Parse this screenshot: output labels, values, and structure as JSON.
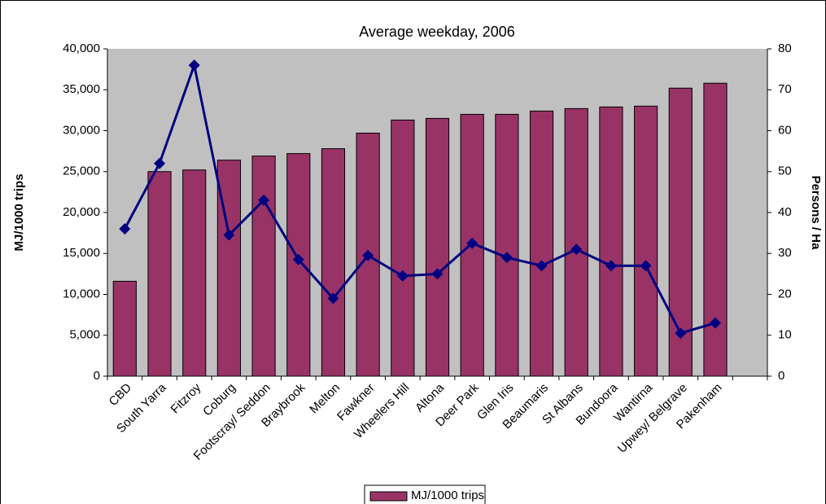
{
  "chart_data": {
    "type": "bar",
    "title": "Average weekday, 2006",
    "y_label": "MJ/1000 trips",
    "y2_label": "Persons / Ha",
    "categories": [
      "CBD",
      "South Yarra",
      "Fitzroy",
      "Coburg",
      "Footscray/ Seddon",
      "Braybrook",
      "Melton",
      "Fawkner",
      "Wheelers Hill",
      "Altona",
      "Deer Park",
      "Glen Iris",
      "Beaumaris",
      "St Albans",
      "Bundoora",
      "Wantirna",
      "Upwey/ Belgrave",
      "Pakenham",
      null
    ],
    "series": [
      {
        "name": "MJ/1000 trips",
        "type": "bar",
        "color": "#993366",
        "values": [
          11600,
          25000,
          25200,
          26400,
          26900,
          27200,
          27800,
          29700,
          31300,
          31500,
          32000,
          32000,
          32400,
          32700,
          32900,
          33000,
          35200,
          35800,
          null
        ]
      },
      {
        "name": "Persons per Ha",
        "type": "line",
        "axis": "y2",
        "color": "#000080",
        "values": [
          36,
          52,
          76,
          34.5,
          43,
          28.5,
          19,
          29.5,
          24.5,
          25,
          32.5,
          29,
          27,
          31,
          27,
          27,
          10.5,
          13,
          null
        ]
      }
    ],
    "ylim": [
      0,
      40000
    ],
    "yticks": [
      0,
      {
        "value": 5000,
        "label": "5,000"
      },
      {
        "value": 10000,
        "label": "10,000"
      },
      {
        "value": 15000,
        "label": "15,000"
      },
      {
        "value": 20000,
        "label": "20,000"
      },
      {
        "value": 25000,
        "label": "25,000"
      },
      {
        "value": 30000,
        "label": "30,000"
      },
      {
        "value": 35000,
        "label": "35,000"
      },
      {
        "value": 40000,
        "label": "40,000"
      }
    ],
    "y2lim": [
      0,
      80
    ],
    "y2ticks": [
      0,
      10,
      20,
      30,
      40,
      50,
      60,
      70,
      80
    ],
    "plot_background": "#c0c0c0",
    "legend": "bottom"
  }
}
